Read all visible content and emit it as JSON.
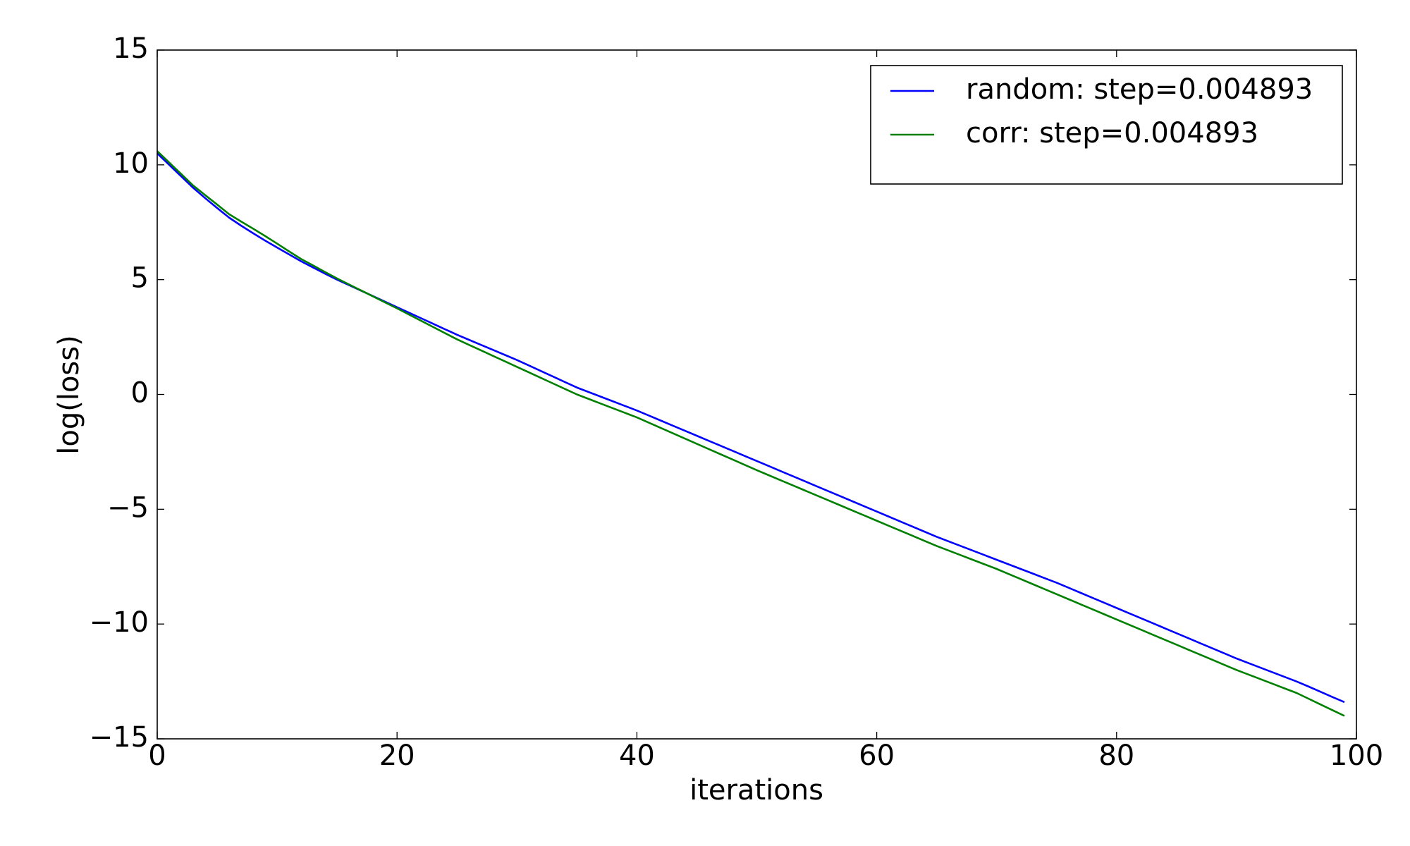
{
  "chart_data": {
    "type": "line",
    "xlabel": "iterations",
    "ylabel": "log(loss)",
    "x": [
      0,
      1,
      2,
      3,
      4,
      5,
      6,
      7,
      8,
      9,
      10,
      11,
      12,
      13,
      14,
      15,
      16,
      17,
      18,
      19,
      20,
      21,
      22,
      23,
      24,
      25,
      26,
      27,
      28,
      29,
      30,
      31,
      32,
      33,
      34,
      35,
      36,
      37,
      38,
      39,
      40,
      41,
      42,
      43,
      44,
      45,
      46,
      47,
      48,
      49,
      50,
      51,
      52,
      53,
      54,
      55,
      56,
      57,
      58,
      59,
      60,
      61,
      62,
      63,
      64,
      65,
      66,
      67,
      68,
      69,
      70,
      71,
      72,
      73,
      74,
      75,
      76,
      77,
      78,
      79,
      80,
      81,
      82,
      83,
      84,
      85,
      86,
      87,
      88,
      89,
      90,
      91,
      92,
      93,
      94,
      95,
      96,
      97,
      98,
      99
    ],
    "series": [
      {
        "name": "random: step=0.004893",
        "color": "#0000ff",
        "values": [
          10.5,
          10.0,
          9.5,
          9.0,
          8.55,
          8.12,
          7.7,
          7.35,
          7.02,
          6.7,
          6.4,
          6.1,
          5.8,
          5.53,
          5.26,
          5.0,
          4.76,
          4.52,
          4.28,
          4.04,
          3.8,
          3.56,
          3.32,
          3.08,
          2.84,
          2.6,
          2.38,
          2.16,
          1.94,
          1.72,
          1.5,
          1.26,
          1.02,
          0.78,
          0.54,
          0.3,
          0.1,
          -0.1,
          -0.3,
          -0.5,
          -0.7,
          -0.92,
          -1.14,
          -1.36,
          -1.58,
          -1.8,
          -2.02,
          -2.24,
          -2.46,
          -2.68,
          -2.9,
          -3.12,
          -3.34,
          -3.56,
          -3.78,
          -4.0,
          -4.22,
          -4.44,
          -4.66,
          -4.88,
          -5.1,
          -5.32,
          -5.54,
          -5.76,
          -5.98,
          -6.2,
          -6.4,
          -6.6,
          -6.8,
          -7.0,
          -7.2,
          -7.4,
          -7.6,
          -7.8,
          -8.0,
          -8.2,
          -8.42,
          -8.64,
          -8.86,
          -9.08,
          -9.3,
          -9.52,
          -9.74,
          -9.96,
          -10.18,
          -10.4,
          -10.62,
          -10.84,
          -11.06,
          -11.28,
          -11.5,
          -11.7,
          -11.9,
          -12.1,
          -12.3,
          -12.5,
          -12.72,
          -12.95,
          -13.18,
          -13.4
        ]
      },
      {
        "name": "corr: step=0.004893",
        "color": "#008000",
        "values": [
          10.6,
          10.1,
          9.6,
          9.1,
          8.68,
          8.27,
          7.85,
          7.53,
          7.22,
          6.9,
          6.57,
          6.23,
          5.9,
          5.62,
          5.33,
          5.05,
          4.79,
          4.53,
          4.27,
          4.01,
          3.75,
          3.48,
          3.21,
          2.94,
          2.67,
          2.4,
          2.16,
          1.92,
          1.68,
          1.44,
          1.2,
          0.96,
          0.72,
          0.48,
          0.24,
          0.0,
          -0.2,
          -0.4,
          -0.6,
          -0.8,
          -1.0,
          -1.23,
          -1.46,
          -1.69,
          -1.92,
          -2.15,
          -2.38,
          -2.61,
          -2.84,
          -3.07,
          -3.3,
          -3.52,
          -3.74,
          -3.96,
          -4.18,
          -4.4,
          -4.62,
          -4.84,
          -5.06,
          -5.28,
          -5.5,
          -5.72,
          -5.94,
          -6.16,
          -6.38,
          -6.6,
          -6.8,
          -7.0,
          -7.2,
          -7.4,
          -7.6,
          -7.82,
          -8.04,
          -8.26,
          -8.48,
          -8.7,
          -8.92,
          -9.14,
          -9.36,
          -9.58,
          -9.8,
          -10.02,
          -10.24,
          -10.46,
          -10.68,
          -10.9,
          -11.12,
          -11.34,
          -11.56,
          -11.78,
          -12.0,
          -12.2,
          -12.4,
          -12.6,
          -12.8,
          -13.0,
          -13.25,
          -13.5,
          -13.75,
          -14.0
        ]
      }
    ],
    "xlim": [
      0,
      100
    ],
    "xticks": [
      0,
      20,
      40,
      60,
      80,
      100
    ],
    "ylim": [
      -15,
      15
    ],
    "yticks": [
      {
        "value": -15,
        "label": "−15"
      },
      {
        "value": -10,
        "label": "−10"
      },
      {
        "value": -5,
        "label": "−5"
      },
      0,
      5,
      10,
      15
    ],
    "grid": false,
    "legend": "upper right"
  }
}
